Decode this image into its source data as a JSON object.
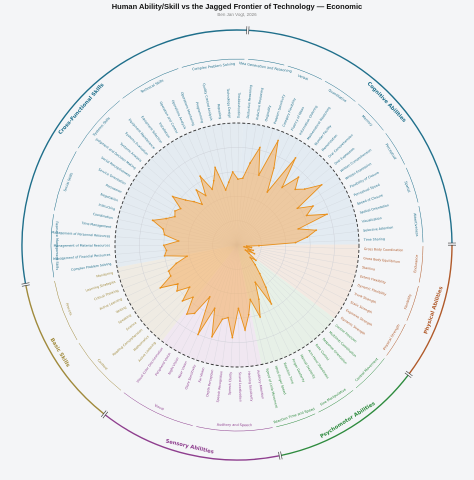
{
  "chart_data": {
    "type": "radar",
    "title": "Human Ability/Skill vs the Jagged Frontier of Technology — Economic",
    "subtitle": "Ben Jan Vogt, 2026",
    "colors": {
      "fill": "#f4b26b",
      "stroke": "#e8901c",
      "dashed_circle": "#333333",
      "grid": "#c9ccd3"
    },
    "categories": [
      {
        "name": "Cognitive Abilities",
        "color": "#1f6f8b",
        "subgroups": [
          "Idea Generation and Reasoning",
          "Verbal",
          "Quantitative",
          "Memory",
          "Perceptual",
          "Spatial",
          "Attentiveness"
        ]
      },
      {
        "name": "Physical Abilities",
        "color": "#b05a2a",
        "subgroups": [
          "Endurance",
          "Flexibility",
          "Physical Strength"
        ]
      },
      {
        "name": "Psychomotor Abilities",
        "color": "#2e8b3e",
        "subgroups": [
          "Control Movement",
          "Fine Manipulative",
          "Reaction Time and Speed"
        ]
      },
      {
        "name": "Sensory Abilities",
        "color": "#8e3e8e",
        "subgroups": [
          "Auditory and Speech",
          "Visual"
        ]
      },
      {
        "name": "Basic Skills",
        "color": "#a08a3c",
        "subgroups": [
          "Content",
          "Process"
        ]
      },
      {
        "name": "Cross-Functional Skills",
        "color": "#1f6f8b",
        "subgroups": [
          "Resource Management Skills",
          "Social Skills",
          "Systems Skills",
          "Technical Skills",
          "Complex Problem Solving"
        ]
      }
    ],
    "labels": [
      "Deductive Reasoning",
      "Inductive Reasoning",
      "Originality",
      "Problem Sensitivity",
      "Category Flexibility",
      "Fluency of Ideas",
      "Information Ordering",
      "Mathematical Reasoning",
      "Number Facility",
      "Memorization",
      "Oral Comprehension",
      "Oral Expression",
      "Written Comprehension",
      "Written Expression",
      "Flexibility of Closure",
      "Perceptual Speed",
      "Speed of Closure",
      "Spatial Orientation",
      "Visualization",
      "Selective Attention",
      "Time Sharing",
      "Gross Body Coordination",
      "Gross Body Equilibrium",
      "Stamina",
      "Extent Flexibility",
      "Dynamic Flexibility",
      "Trunk Strength",
      "Static Strength",
      "Explosive Strength",
      "Dynamic Strength",
      "Control Precision",
      "Multilimb Coordination",
      "Response Orientation",
      "Rate Control",
      "Arm-Hand Steadiness",
      "Manual Dexterity",
      "Finger Dexterity",
      "Reaction Time",
      "Wrist-Finger Speed",
      "Speed of Limb Movement",
      "Auditory Attention",
      "Hearing Sensitivity",
      "Sound Localization",
      "Speech Clarity",
      "Speech Recognition",
      "Depth Perception",
      "Far Vision",
      "Glare Sensitivity",
      "Near Vision",
      "Night Vision",
      "Peripheral Vision",
      "Visual Color Discrimination",
      "Active Listening",
      "Mathematics",
      "Reading Comprehension",
      "Science",
      "Speaking",
      "Writing",
      "Active Learning",
      "Critical Thinking",
      "Learning Strategies",
      "Monitoring",
      "Complex Problem Solving",
      "Management of Financial Resources",
      "Management of Material Resources",
      "Management of Personnel Resources",
      "Time Management",
      "Coordination",
      "Instructing",
      "Negotiation",
      "Persuasion",
      "Service Orientation",
      "Social Perceptiveness",
      "Judgment and Decision Making",
      "Systems Analysis",
      "Systems Evaluation",
      "Equipment Maintenance",
      "Equipment Selection",
      "Installation",
      "Operation and Control",
      "Operations Analysis",
      "Operations Monitoring",
      "Programming",
      "Quality Control Analysis",
      "Repairing",
      "Technology Design",
      "Troubleshooting"
    ],
    "values": [
      0.55,
      0.68,
      0.82,
      0.6,
      0.92,
      0.7,
      0.5,
      0.86,
      0.6,
      0.75,
      0.66,
      0.72,
      0.85,
      0.58,
      0.7,
      0.62,
      0.78,
      0.52,
      0.66,
      0.58,
      0.48,
      0.18,
      0.08,
      0.12,
      0.06,
      0.14,
      0.1,
      0.16,
      0.08,
      0.12,
      0.2,
      0.15,
      0.22,
      0.3,
      0.42,
      0.56,
      0.34,
      0.48,
      0.62,
      0.46,
      0.58,
      0.7,
      0.52,
      0.76,
      0.6,
      0.62,
      0.78,
      0.55,
      0.8,
      0.48,
      0.66,
      0.7,
      0.56,
      0.64,
      0.52,
      0.62,
      0.58,
      0.72,
      0.6,
      0.6,
      0.52,
      0.42,
      0.6,
      0.58,
      0.6,
      0.48,
      0.6,
      0.62,
      0.72,
      0.62,
      0.56,
      0.58,
      0.55,
      0.66,
      0.56,
      0.5,
      0.44,
      0.56,
      0.48,
      0.64,
      0.5,
      0.56,
      0.66,
      0.46,
      0.52,
      0.6,
      0.54
    ],
    "rlim": [
      0,
      1
    ],
    "dashed_circle_value": 1.0,
    "grid": true
  }
}
